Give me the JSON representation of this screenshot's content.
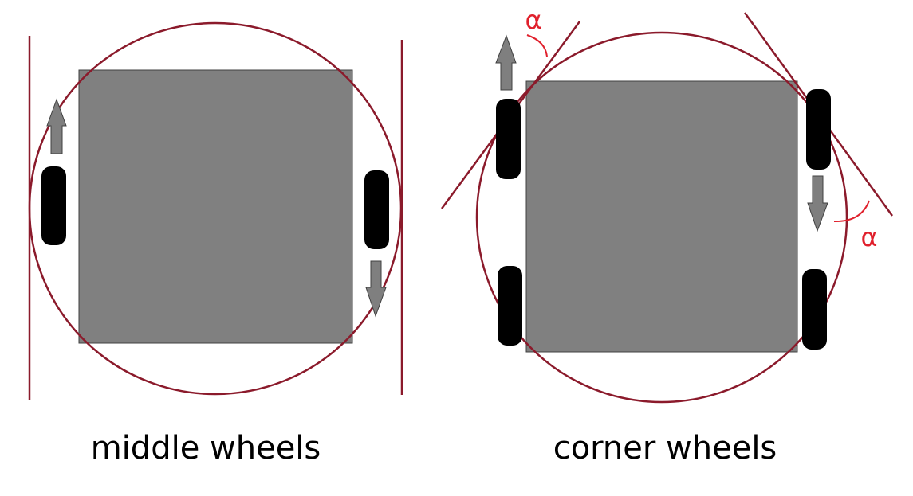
{
  "diagram": {
    "left_label": "middle wheels",
    "right_label": "corner wheels",
    "angle_symbol": "α",
    "colors": {
      "chassis": "#808080",
      "chassis_border": "#404040",
      "circle": "#8b1a2b",
      "tangent": "#8b1a2b",
      "wheel": "#000000",
      "arrow": "#7f7f7f",
      "arrow_border": "#404040",
      "angle_mark": "#e0202c",
      "text": "#000000"
    },
    "icons": [
      "arrow-up-icon",
      "arrow-down-icon",
      "wheel-icon"
    ]
  }
}
